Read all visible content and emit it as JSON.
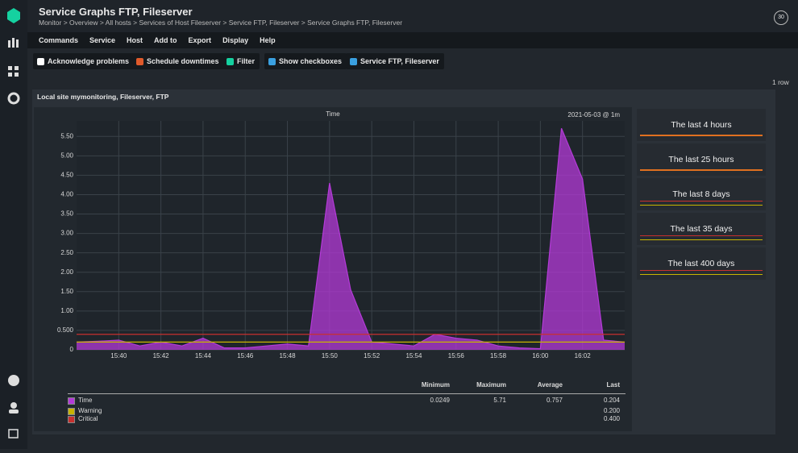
{
  "header": {
    "title": "Service Graphs FTP, Fileserver",
    "breadcrumb": "Monitor > Overview > All hosts > Services of Host Fileserver > Service FTP, Fileserver > Service Graphs FTP, Fileserver",
    "refresh": "30"
  },
  "menu": [
    "Commands",
    "Service",
    "Host",
    "Add to",
    "Export",
    "Display",
    "Help"
  ],
  "toolbar": [
    "Acknowledge problems",
    "Schedule downtimes",
    "Filter",
    "Show checkboxes",
    "Service FTP, Fileserver"
  ],
  "row_count": "1 row",
  "panel": {
    "title": "Local site mymonitoring, Fileserver, FTP"
  },
  "chart_data": {
    "type": "area",
    "title": "Time",
    "annotation": "2021-05-03 @ 1m",
    "categories": [
      null,
      null,
      "15:40",
      null,
      "15:42",
      null,
      "15:44",
      null,
      "15:46",
      null,
      "15:48",
      null,
      "15:50",
      null,
      "15:52",
      null,
      "15:54",
      null,
      "15:56",
      null,
      "15:58",
      null,
      "16:00",
      null,
      "16:02",
      null,
      null
    ],
    "series": [
      {
        "name": "Time",
        "color": "#b43ad8",
        "values": [
          0.2,
          0.22,
          0.25,
          0.1,
          0.2,
          0.1,
          0.3,
          0.05,
          0.05,
          0.1,
          0.15,
          0.1,
          4.3,
          1.55,
          0.2,
          0.15,
          0.1,
          0.4,
          0.3,
          0.25,
          0.1,
          0.05,
          0.03,
          5.71,
          4.4,
          0.25,
          0.2
        ]
      }
    ],
    "thresholds": [
      {
        "name": "Warning",
        "value": 0.2,
        "color": "#c8b400"
      },
      {
        "name": "Critical",
        "value": 0.4,
        "color": "#c8302e"
      }
    ],
    "ylim": [
      0,
      5.9
    ],
    "yticks": [
      0,
      {
        "value": 0.5,
        "label": "0.500"
      },
      {
        "value": 1,
        "label": "1.00"
      },
      {
        "value": 1.5,
        "label": "1.50"
      },
      {
        "value": 2,
        "label": "2.00"
      },
      {
        "value": 2.5,
        "label": "2.50"
      },
      {
        "value": 3,
        "label": "3.00"
      },
      {
        "value": 3.5,
        "label": "3.50"
      },
      {
        "value": 4,
        "label": "4.00"
      },
      {
        "value": 4.5,
        "label": "4.50"
      },
      {
        "value": 5,
        "label": "5.00"
      },
      {
        "value": 5.5,
        "label": "5.50"
      }
    ],
    "grid": true
  },
  "legend_table": {
    "columns": [
      "Minimum",
      "Maximum",
      "Average",
      "Last"
    ],
    "rows": [
      [
        "Time",
        "0.0249",
        "5.71",
        "0.757",
        "0.204"
      ],
      [
        "Warning",
        "",
        "",
        "",
        "0.200"
      ],
      [
        "Critical",
        "",
        "",
        "",
        "0.400"
      ]
    ]
  },
  "timeranges": [
    "The last 4 hours",
    "The last 25 hours",
    "The last 8 days",
    "The last 35 days",
    "The last 400 days"
  ]
}
